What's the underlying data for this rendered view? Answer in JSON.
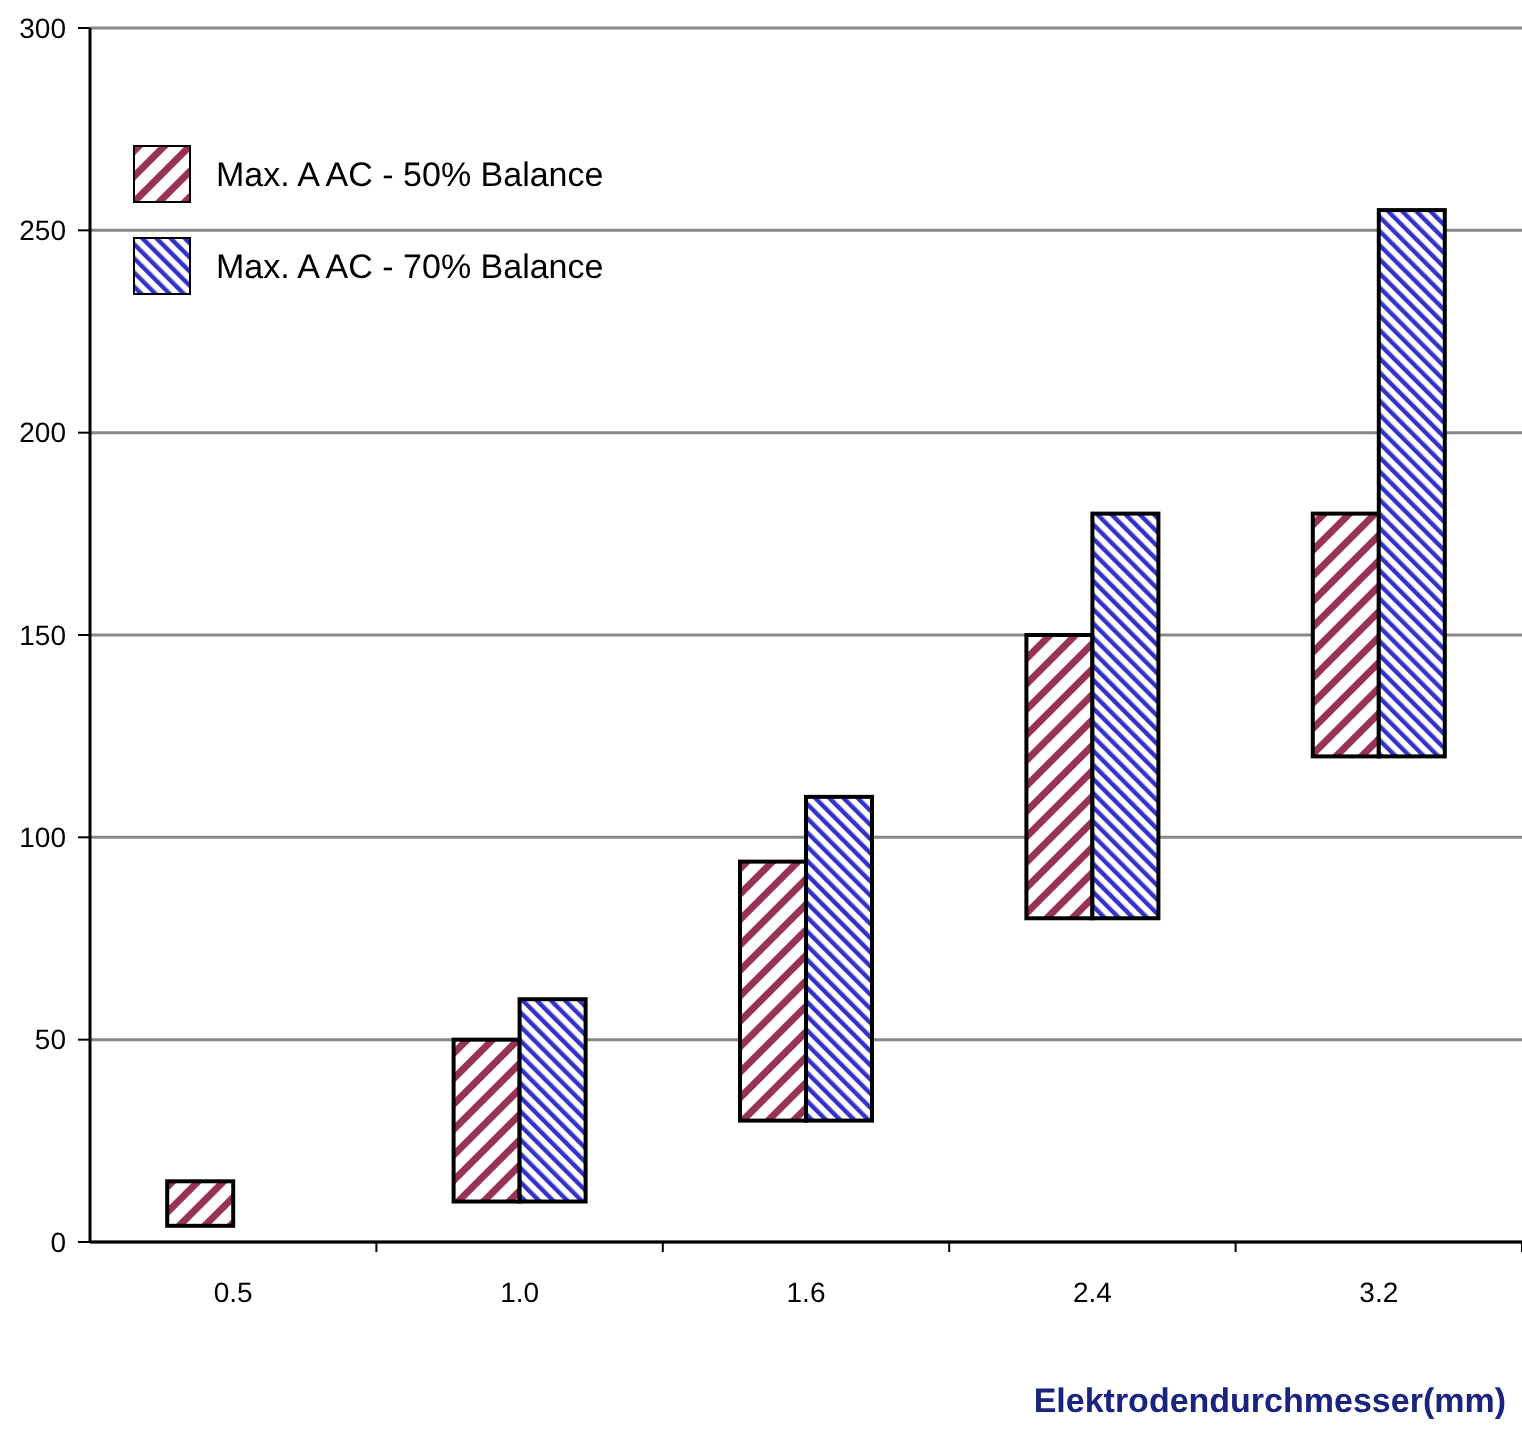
{
  "chart_data": {
    "type": "bar",
    "xlabel": "Elektrodendurchmesser(mm)",
    "categories": [
      "0.5",
      "1.0",
      "1.6",
      "2.4",
      "3.2"
    ],
    "series": [
      {
        "name": "Max. A AC - 50% Balance",
        "color": "#993355",
        "base": [
          4,
          10,
          30,
          80,
          120
        ],
        "values": [
          11,
          40,
          64,
          70,
          60
        ]
      },
      {
        "name": "Max. A AC - 70% Balance",
        "color": "#3333cc",
        "base": [
          null,
          10,
          30,
          80,
          120
        ],
        "values": [
          null,
          50,
          80,
          100,
          135
        ]
      }
    ],
    "ylim": [
      0,
      300
    ],
    "yticks": [
      0,
      50,
      100,
      150,
      200,
      250,
      300
    ],
    "grid": "y",
    "legend": "top left"
  }
}
